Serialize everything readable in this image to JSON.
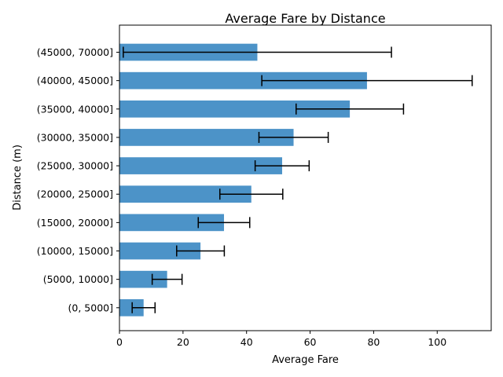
{
  "chart_data": {
    "type": "bar",
    "orientation": "horizontal",
    "title": "Average Fare by Distance",
    "xlabel": "Average Fare",
    "ylabel": "Distance (m)",
    "xlim": [
      0,
      117
    ],
    "xticks": [
      0,
      20,
      40,
      60,
      80,
      100
    ],
    "categories": [
      "(0, 5000]",
      "(5000, 10000]",
      "(10000, 15000]",
      "(15000, 20000]",
      "(20000, 25000]",
      "(25000, 30000]",
      "(30000, 35000]",
      "(35000, 40000]",
      "(40000, 45000]",
      "(45000, 70000]"
    ],
    "values": [
      7.6,
      15.0,
      25.5,
      32.9,
      41.5,
      51.2,
      54.8,
      72.5,
      77.9,
      43.4
    ],
    "error": [
      3.6,
      4.7,
      7.5,
      8.1,
      9.9,
      8.5,
      10.9,
      16.9,
      33.1,
      42.2
    ],
    "bar_color": "#4c93c8",
    "errorbar_color": "#000000",
    "grid": false,
    "legend": false
  }
}
